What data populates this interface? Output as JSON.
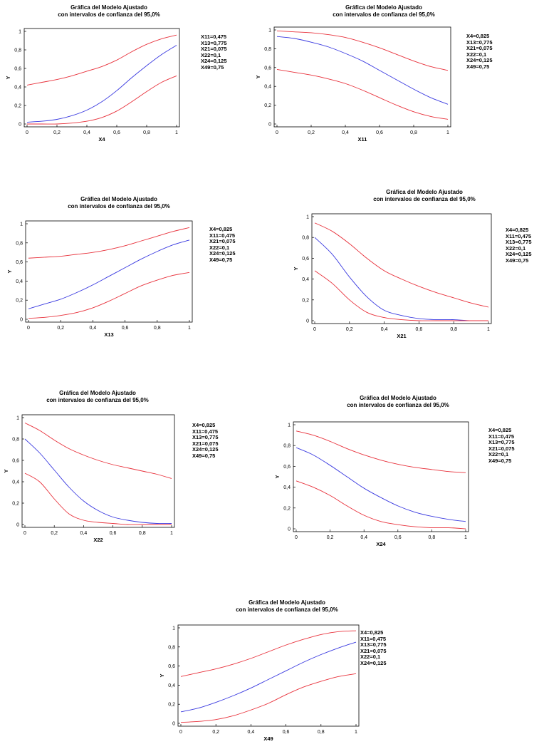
{
  "charts_layout": "7 panels",
  "chart_data": [
    {
      "type": "line",
      "title": "Gráfica del Modelo Ajustado",
      "subtitle": "con intervalos de confianza del 95,0%",
      "xlabel": "X4",
      "ylabel": "Y",
      "xlim": [
        0,
        1
      ],
      "ylim": [
        0,
        1
      ],
      "xticks": [
        "0",
        "0,2",
        "0,4",
        "0,6",
        "0,8",
        "1"
      ],
      "yticks": [
        "0",
        "0,2",
        "0,4",
        "0,6",
        "0,8",
        "1"
      ],
      "x": [
        0,
        0.1,
        0.2,
        0.3,
        0.4,
        0.5,
        0.6,
        0.7,
        0.8,
        0.9,
        1.0
      ],
      "series": [
        {
          "role": "upper",
          "color": "#e8323c",
          "values": [
            0.42,
            0.45,
            0.48,
            0.52,
            0.57,
            0.62,
            0.69,
            0.78,
            0.86,
            0.92,
            0.96
          ]
        },
        {
          "role": "fit",
          "color": "#3a3ae0",
          "values": [
            0.02,
            0.03,
            0.05,
            0.09,
            0.15,
            0.24,
            0.36,
            0.5,
            0.63,
            0.75,
            0.85
          ]
        },
        {
          "role": "lower",
          "color": "#e8323c",
          "values": [
            0.0,
            0.0,
            0.0,
            0.01,
            0.03,
            0.07,
            0.14,
            0.24,
            0.35,
            0.45,
            0.52
          ]
        }
      ],
      "params": [
        "X11=0,475",
        "X13=0,775",
        "X21=0,075",
        "X22=0,1",
        "X24=0,125",
        "X49=0,75"
      ]
    },
    {
      "type": "line",
      "title": "Gráfica del Modelo Ajustado",
      "subtitle": "con intervalos de confianza del 95,0%",
      "xlabel": "X11",
      "ylabel": "Y",
      "xlim": [
        0,
        1
      ],
      "ylim": [
        0,
        1
      ],
      "xticks": [
        "0",
        "0,2",
        "0,4",
        "0,6",
        "0,8",
        "1"
      ],
      "yticks": [
        "0",
        "0,2",
        "0,4",
        "0,6",
        "0,8",
        "1"
      ],
      "x": [
        0,
        0.1,
        0.2,
        0.3,
        0.4,
        0.5,
        0.6,
        0.7,
        0.8,
        0.9,
        1.0
      ],
      "series": [
        {
          "role": "upper",
          "color": "#e8323c",
          "values": [
            0.99,
            0.98,
            0.97,
            0.95,
            0.92,
            0.87,
            0.81,
            0.74,
            0.67,
            0.61,
            0.57
          ]
        },
        {
          "role": "fit",
          "color": "#3a3ae0",
          "values": [
            0.93,
            0.91,
            0.87,
            0.82,
            0.75,
            0.67,
            0.57,
            0.47,
            0.37,
            0.28,
            0.21
          ]
        },
        {
          "role": "lower",
          "color": "#e8323c",
          "values": [
            0.58,
            0.55,
            0.52,
            0.48,
            0.43,
            0.36,
            0.28,
            0.2,
            0.13,
            0.08,
            0.05
          ]
        }
      ],
      "params": [
        "X4=0,825",
        "X13=0,775",
        "X21=0,075",
        "X22=0,1",
        "X24=0,125",
        "X49=0,75"
      ]
    },
    {
      "type": "line",
      "title": "Gráfica del Modelo Ajustado",
      "subtitle": "con intervalos de confianza del 95,0%",
      "xlabel": "X13",
      "ylabel": "Y",
      "xlim": [
        0,
        1
      ],
      "ylim": [
        0,
        1
      ],
      "xticks": [
        "0",
        "0,2",
        "0,4",
        "0,6",
        "0,8",
        "1"
      ],
      "yticks": [
        "0",
        "0,2",
        "0,4",
        "0,6",
        "0,8",
        "1"
      ],
      "x": [
        0,
        0.1,
        0.2,
        0.3,
        0.4,
        0.5,
        0.6,
        0.7,
        0.8,
        0.9,
        1.0
      ],
      "series": [
        {
          "role": "upper",
          "color": "#e8323c",
          "values": [
            0.64,
            0.65,
            0.66,
            0.68,
            0.7,
            0.73,
            0.77,
            0.82,
            0.87,
            0.92,
            0.96
          ]
        },
        {
          "role": "fit",
          "color": "#3a3ae0",
          "values": [
            0.11,
            0.16,
            0.21,
            0.28,
            0.36,
            0.45,
            0.54,
            0.63,
            0.71,
            0.78,
            0.83
          ]
        },
        {
          "role": "lower",
          "color": "#e8323c",
          "values": [
            0.01,
            0.02,
            0.04,
            0.07,
            0.12,
            0.19,
            0.27,
            0.35,
            0.41,
            0.46,
            0.49
          ]
        }
      ],
      "params": [
        "X4=0,825",
        "X11=0,475",
        "X21=0,075",
        "X22=0,1",
        "X24=0,125",
        "X49=0,75"
      ]
    },
    {
      "type": "line",
      "title": "Gráfica del Modelo Ajustado",
      "subtitle": "con intervalos de confianza del 95,0%",
      "xlabel": "X21",
      "ylabel": "Y",
      "xlim": [
        0,
        1
      ],
      "ylim": [
        0,
        1
      ],
      "xticks": [
        "0",
        "0,2",
        "0,4",
        "0,6",
        "0,8",
        "1"
      ],
      "yticks": [
        "0",
        "0,2",
        "0,4",
        "0,6",
        "0,8",
        "1"
      ],
      "x": [
        0,
        0.1,
        0.2,
        0.3,
        0.4,
        0.5,
        0.6,
        0.7,
        0.8,
        0.9,
        1.0
      ],
      "series": [
        {
          "role": "upper",
          "color": "#e8323c",
          "values": [
            0.94,
            0.86,
            0.74,
            0.6,
            0.48,
            0.4,
            0.33,
            0.27,
            0.22,
            0.17,
            0.13
          ]
        },
        {
          "role": "fit",
          "color": "#3a3ae0",
          "values": [
            0.8,
            0.64,
            0.42,
            0.23,
            0.1,
            0.05,
            0.02,
            0.01,
            0.01,
            0.0,
            0.0
          ]
        },
        {
          "role": "lower",
          "color": "#e8323c",
          "values": [
            0.48,
            0.36,
            0.2,
            0.08,
            0.03,
            0.01,
            0.0,
            0.0,
            0.0,
            0.0,
            0.0
          ]
        }
      ],
      "params": [
        "X4=0,825",
        "X11=0,475",
        "X13=0,775",
        "X22=0,1",
        "X24=0,125",
        "X49=0,75"
      ]
    },
    {
      "type": "line",
      "title": "Gráfica del Modelo Ajustado",
      "subtitle": "con intervalos de confianza del 95,0%",
      "xlabel": "X22",
      "ylabel": "Y",
      "xlim": [
        0,
        1
      ],
      "ylim": [
        0,
        1
      ],
      "xticks": [
        "0",
        "0,2",
        "0,4",
        "0,6",
        "0,8",
        "1"
      ],
      "yticks": [
        "0",
        "0,2",
        "0,4",
        "0,6",
        "0,8",
        "1"
      ],
      "x": [
        0,
        0.1,
        0.2,
        0.3,
        0.4,
        0.5,
        0.6,
        0.7,
        0.8,
        0.9,
        1.0
      ],
      "series": [
        {
          "role": "upper",
          "color": "#e8323c",
          "values": [
            0.95,
            0.88,
            0.79,
            0.71,
            0.65,
            0.6,
            0.56,
            0.53,
            0.5,
            0.47,
            0.43
          ]
        },
        {
          "role": "fit",
          "color": "#3a3ae0",
          "values": [
            0.8,
            0.67,
            0.51,
            0.35,
            0.22,
            0.13,
            0.07,
            0.04,
            0.02,
            0.01,
            0.01
          ]
        },
        {
          "role": "lower",
          "color": "#e8323c",
          "values": [
            0.48,
            0.4,
            0.24,
            0.1,
            0.04,
            0.02,
            0.01,
            0.0,
            0.0,
            0.0,
            0.0
          ]
        }
      ],
      "params": [
        "X4=0,825",
        "X11=0,475",
        "X13=0,775",
        "X21=0,075",
        "X24=0,125",
        "X49=0,75"
      ]
    },
    {
      "type": "line",
      "title": "Gráfica del Modelo Ajustado",
      "subtitle": "con intervalos de confianza del 95,0%",
      "xlabel": "X24",
      "ylabel": "Y",
      "xlim": [
        0,
        1
      ],
      "ylim": [
        0,
        1
      ],
      "xticks": [
        "0",
        "0,2",
        "0,4",
        "0,6",
        "0,8",
        "1"
      ],
      "yticks": [
        "0",
        "0,2",
        "0,4",
        "0,6",
        "0,8",
        "1"
      ],
      "x": [
        0,
        0.1,
        0.2,
        0.3,
        0.4,
        0.5,
        0.6,
        0.7,
        0.8,
        0.9,
        1.0
      ],
      "series": [
        {
          "role": "upper",
          "color": "#e8323c",
          "values": [
            0.94,
            0.9,
            0.84,
            0.77,
            0.71,
            0.66,
            0.62,
            0.59,
            0.57,
            0.55,
            0.54
          ]
        },
        {
          "role": "fit",
          "color": "#3a3ae0",
          "values": [
            0.78,
            0.71,
            0.61,
            0.5,
            0.39,
            0.3,
            0.22,
            0.16,
            0.12,
            0.09,
            0.07
          ]
        },
        {
          "role": "lower",
          "color": "#e8323c",
          "values": [
            0.46,
            0.4,
            0.32,
            0.22,
            0.13,
            0.07,
            0.04,
            0.02,
            0.01,
            0.01,
            0.0
          ]
        }
      ],
      "params": [
        "X4=0,825",
        "X11=0,475",
        "X13=0,775",
        "X21=0,075",
        "X22=0,1",
        "X49=0,75"
      ]
    },
    {
      "type": "line",
      "title": "Gráfica del Modelo Ajustado",
      "subtitle": "con intervalos de confianza del 95,0%",
      "xlabel": "X49",
      "ylabel": "Y",
      "xlim": [
        0,
        1
      ],
      "ylim": [
        0,
        1
      ],
      "xticks": [
        "0",
        "0,2",
        "0,4",
        "0,6",
        "0,8",
        "1"
      ],
      "yticks": [
        "0",
        "0,2",
        "0,4",
        "0,6",
        "0,8",
        "1"
      ],
      "x": [
        0,
        0.1,
        0.2,
        0.3,
        0.4,
        0.5,
        0.6,
        0.7,
        0.8,
        0.9,
        1.0
      ],
      "series": [
        {
          "role": "upper",
          "color": "#e8323c",
          "values": [
            0.49,
            0.53,
            0.57,
            0.62,
            0.68,
            0.75,
            0.82,
            0.88,
            0.93,
            0.96,
            0.97
          ]
        },
        {
          "role": "fit",
          "color": "#3a3ae0",
          "values": [
            0.12,
            0.16,
            0.22,
            0.29,
            0.37,
            0.46,
            0.55,
            0.64,
            0.72,
            0.79,
            0.85
          ]
        },
        {
          "role": "lower",
          "color": "#e8323c",
          "values": [
            0.01,
            0.02,
            0.04,
            0.08,
            0.14,
            0.21,
            0.3,
            0.38,
            0.44,
            0.49,
            0.52
          ]
        }
      ],
      "params": [
        "X4=0,825",
        "X11=0,475",
        "X13=0,775",
        "X21=0,075",
        "X22=0,1",
        "X24=0,125"
      ]
    }
  ]
}
